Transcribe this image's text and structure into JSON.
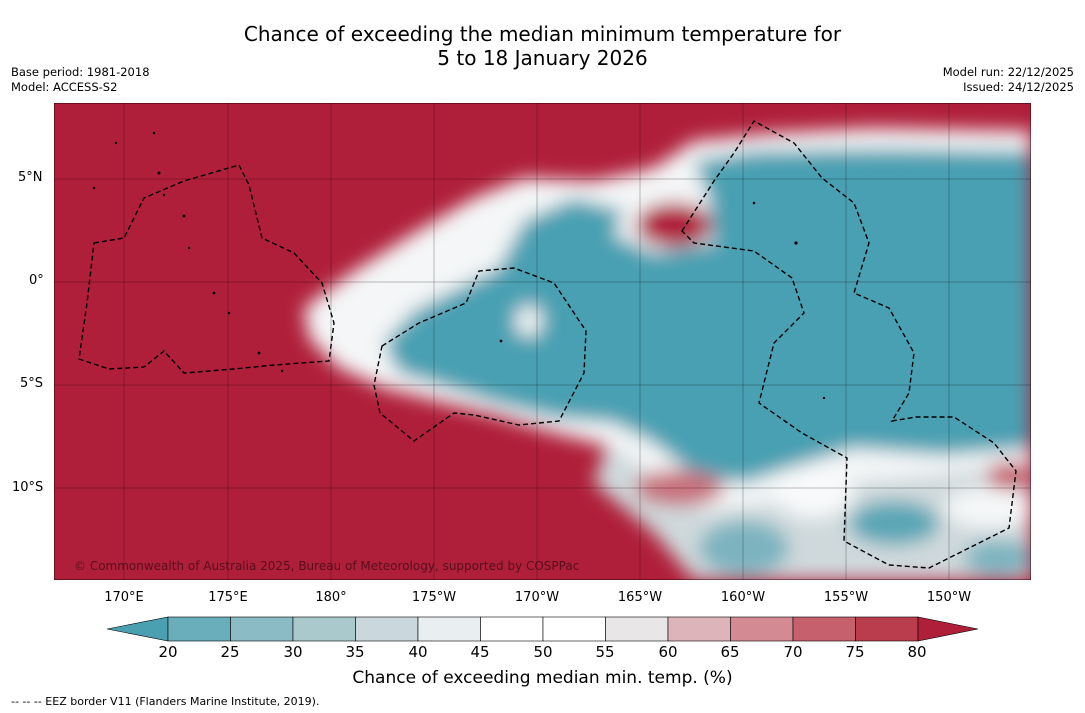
{
  "title": {
    "line1": "Chance of exceeding the median minimum temperature for",
    "line2": "5 to 18 January 2026"
  },
  "meta_left": {
    "base_period": "Base period: 1981-2018",
    "model": "Model: ACCESS-S2"
  },
  "meta_right": {
    "model_run": "Model run: 22/12/2025",
    "issued": "Issued: 24/12/2025"
  },
  "map": {
    "copyright": "© Commonwealth of Australia 2025, Bureau of Meteorology, supported by COSPPac",
    "lat_labels": [
      "5°N",
      "0°",
      "5°S",
      "10°S"
    ],
    "lon_labels": [
      "170°E",
      "175°E",
      "180°",
      "175°W",
      "170°W",
      "165°W",
      "160°W",
      "155°W",
      "150°W"
    ]
  },
  "colorbar": {
    "ticks": [
      "20",
      "25",
      "30",
      "35",
      "40",
      "45",
      "50",
      "55",
      "60",
      "65",
      "70",
      "75",
      "80"
    ],
    "colors": [
      "#4a9fb1",
      "#6aaebb",
      "#8bbcc5",
      "#a9c9cd",
      "#cad7dc",
      "#e9eef0",
      "#ffffff",
      "#ffffff",
      "#e8e6e7",
      "#dcb4ba",
      "#d38a93",
      "#c7606d",
      "#b93d4d",
      "#b01f3a"
    ],
    "label": "Chance of exceeding median min. temp. (%)"
  },
  "footer": "--  --  -- EEZ border V11 (Flanders Marine Institute, 2019)."
}
